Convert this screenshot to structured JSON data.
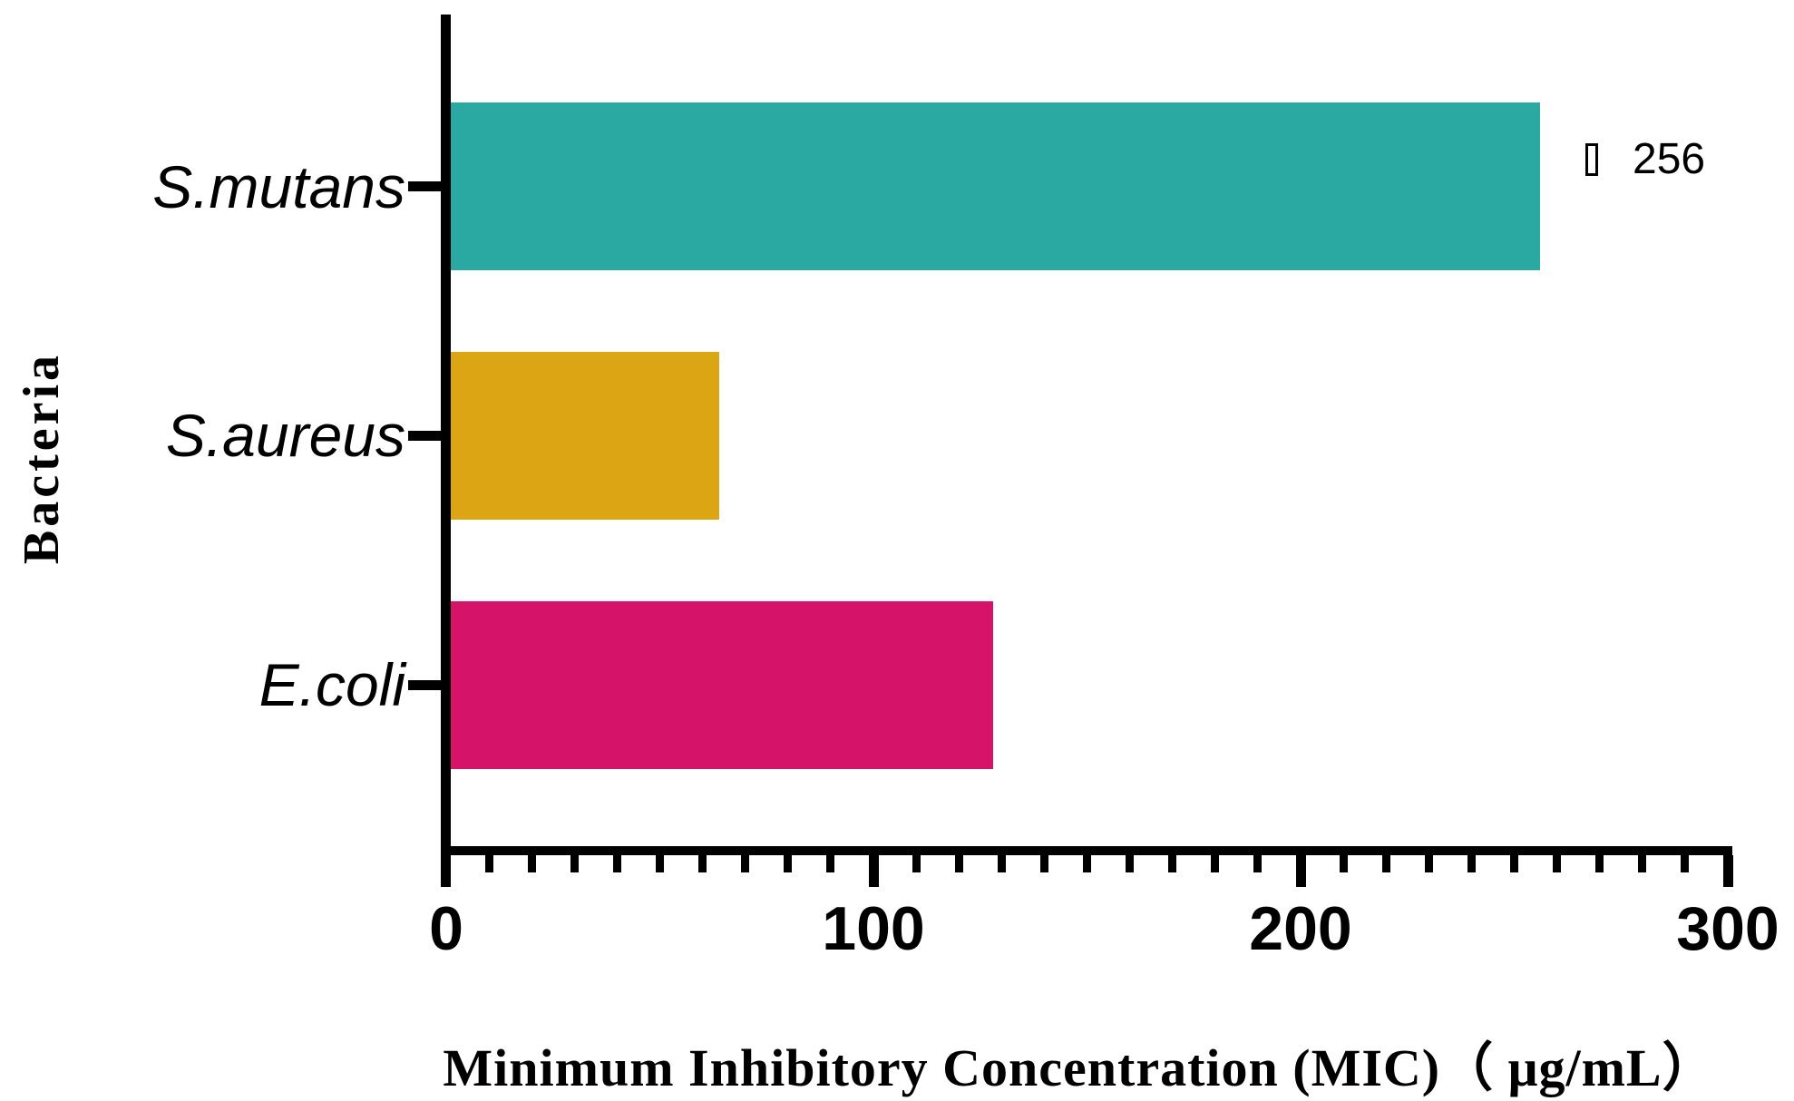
{
  "chart_data": {
    "type": "bar",
    "orientation": "horizontal",
    "title": "",
    "xlabel": "Minimum Inhibitory Concentration (MIC)（ μg/mL）",
    "ylabel": "Bacteria",
    "categories": [
      "S.mutans",
      "S.aureus",
      "E.coli"
    ],
    "values": [
      256,
      64,
      128
    ],
    "bar_colors": [
      "#2AA8A2",
      "#DCA514",
      "#D41369"
    ],
    "xlim": [
      0,
      300
    ],
    "x_major_ticks": [
      0,
      100,
      200,
      300
    ],
    "x_tick_labels": [
      "0",
      "100",
      "200",
      "300"
    ],
    "x_minor_tick_interval": 10,
    "grid": false,
    "legend": "none",
    "annotations": [
      {
        "target": "S.mutans",
        "symbol": "missing-glyph-box",
        "text": "256"
      }
    ]
  },
  "colors": {
    "axis": "#000000",
    "text": "#000000",
    "background": "#ffffff",
    "teal": "#2AA8A2",
    "gold": "#DCA514",
    "magenta": "#D41369"
  }
}
